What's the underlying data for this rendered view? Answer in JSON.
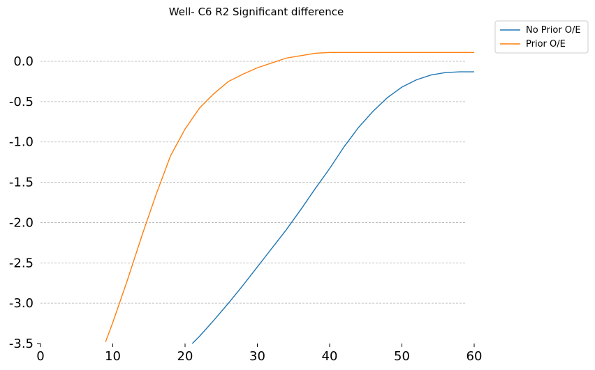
{
  "chart_data": {
    "type": "line",
    "title": "Well- C6    R2     Significant difference",
    "xlabel": "",
    "ylabel": "",
    "xlim": [
      0,
      60
    ],
    "ylim": [
      -3.5,
      0.0
    ],
    "xticks": [
      0,
      10,
      20,
      30,
      40,
      50,
      60
    ],
    "yticks": [
      0.0,
      -0.5,
      -1.0,
      -1.5,
      -2.0,
      -2.5,
      -3.0,
      -3.5
    ],
    "xtick_labels": [
      "0",
      "10",
      "20",
      "30",
      "40",
      "50",
      "60"
    ],
    "ytick_labels": [
      "0.0",
      "-0.5",
      "-1.0",
      "-1.5",
      "-2.0",
      "-2.5",
      "-3.0",
      "-3.5"
    ],
    "grid": "horizontal dashed",
    "legend_position": "top-right outside",
    "series": [
      {
        "name": "No Prior O/E",
        "color": "#1f77b4",
        "points": [
          [
            21,
            -3.5
          ],
          [
            22,
            -3.41
          ],
          [
            24,
            -3.21
          ],
          [
            26,
            -3.0
          ],
          [
            28,
            -2.78
          ],
          [
            30,
            -2.55
          ],
          [
            32,
            -2.32
          ],
          [
            34,
            -2.09
          ],
          [
            36,
            -1.84
          ],
          [
            38,
            -1.58
          ],
          [
            40,
            -1.33
          ],
          [
            42,
            -1.06
          ],
          [
            44,
            -0.82
          ],
          [
            46,
            -0.62
          ],
          [
            48,
            -0.45
          ],
          [
            50,
            -0.32
          ],
          [
            52,
            -0.23
          ],
          [
            54,
            -0.17
          ],
          [
            56,
            -0.14
          ],
          [
            58,
            -0.13
          ],
          [
            60,
            -0.13
          ]
        ]
      },
      {
        "name": "Prior O/E",
        "color": "#ff7f0e",
        "points": [
          [
            9,
            -3.48
          ],
          [
            10,
            -3.24
          ],
          [
            12,
            -2.72
          ],
          [
            14,
            -2.17
          ],
          [
            16,
            -1.65
          ],
          [
            18,
            -1.17
          ],
          [
            20,
            -0.84
          ],
          [
            22,
            -0.58
          ],
          [
            24,
            -0.4
          ],
          [
            26,
            -0.25
          ],
          [
            28,
            -0.16
          ],
          [
            30,
            -0.08
          ],
          [
            32,
            -0.02
          ],
          [
            34,
            0.04
          ],
          [
            36,
            0.07
          ],
          [
            38,
            0.1
          ],
          [
            40,
            0.11
          ],
          [
            42,
            0.11
          ],
          [
            44,
            0.11
          ],
          [
            46,
            0.11
          ],
          [
            48,
            0.11
          ],
          [
            50,
            0.11
          ],
          [
            52,
            0.11
          ],
          [
            54,
            0.11
          ],
          [
            56,
            0.11
          ],
          [
            58,
            0.11
          ],
          [
            60,
            0.11
          ]
        ]
      }
    ]
  }
}
